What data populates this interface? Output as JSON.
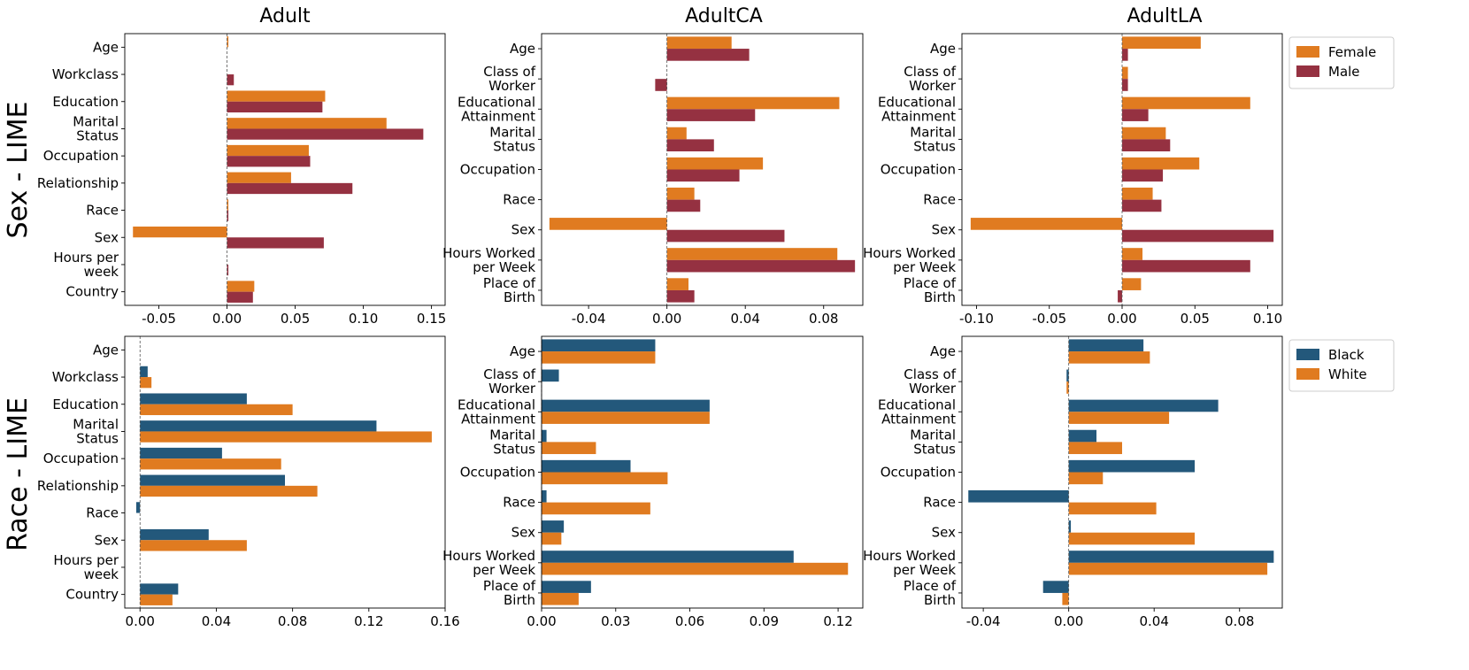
{
  "figure": {
    "row_labels": [
      "Sex - LIME",
      "Race - LIME"
    ],
    "col_titles": [
      "Adult",
      "AdultCA",
      "AdultLA"
    ]
  },
  "legends": [
    {
      "entries": [
        {
          "name": "Female",
          "color": "#E07B20"
        },
        {
          "name": "Male",
          "color": "#953141"
        }
      ]
    },
    {
      "entries": [
        {
          "name": "Black",
          "color": "#23587B"
        },
        {
          "name": "White",
          "color": "#E07B20"
        }
      ]
    }
  ],
  "chart_data": [
    {
      "type": "bar",
      "orientation": "horizontal",
      "row": 0,
      "col": 0,
      "title": "Adult",
      "categories": [
        "Age",
        "Workclass",
        "Education",
        "Marital\nStatus",
        "Occupation",
        "Relationship",
        "Race",
        "Sex",
        "Hours per\nweek",
        "Country"
      ],
      "xlim": [
        -0.075,
        0.16
      ],
      "xticks": [
        -0.05,
        0.0,
        0.05,
        0.1,
        0.15
      ],
      "xtick_labels": [
        "-0.05",
        "0.00",
        "0.05",
        "0.10",
        "0.15"
      ],
      "series": [
        {
          "name": "Female",
          "color": "#E07B20",
          "values": [
            0.001,
            0.0,
            0.072,
            0.117,
            0.06,
            0.047,
            0.001,
            -0.069,
            0.0,
            0.02
          ]
        },
        {
          "name": "Male",
          "color": "#953141",
          "values": [
            0.0,
            0.005,
            0.07,
            0.144,
            0.061,
            0.092,
            0.001,
            0.071,
            0.001,
            0.019
          ]
        }
      ]
    },
    {
      "type": "bar",
      "orientation": "horizontal",
      "row": 0,
      "col": 1,
      "title": "AdultCA",
      "categories": [
        "Age",
        "Class of\nWorker",
        "Educational\nAttainment",
        "Marital\nStatus",
        "Occupation",
        "Race",
        "Sex",
        "Hours Worked\nper Week",
        "Place of\nBirth"
      ],
      "xlim": [
        -0.064,
        0.1
      ],
      "xticks": [
        -0.04,
        0.0,
        0.04,
        0.08
      ],
      "xtick_labels": [
        "-0.04",
        "0.00",
        "0.04",
        "0.08"
      ],
      "series": [
        {
          "name": "Female",
          "color": "#E07B20",
          "values": [
            0.033,
            0.0,
            0.088,
            0.01,
            0.049,
            0.014,
            -0.06,
            0.087,
            0.011
          ]
        },
        {
          "name": "Male",
          "color": "#953141",
          "values": [
            0.042,
            -0.006,
            0.045,
            0.024,
            0.037,
            0.017,
            0.06,
            0.096,
            0.014
          ]
        }
      ]
    },
    {
      "type": "bar",
      "orientation": "horizontal",
      "row": 0,
      "col": 2,
      "title": "AdultLA",
      "categories": [
        "Age",
        "Class of\nWorker",
        "Educational\nAttainment",
        "Marital\nStatus",
        "Occupation",
        "Race",
        "Sex",
        "Hours Worked\nper Week",
        "Place of\nBirth"
      ],
      "xlim": [
        -0.11,
        0.11
      ],
      "xticks": [
        -0.1,
        -0.05,
        0.0,
        0.05,
        0.1
      ],
      "xtick_labels": [
        "-0.10",
        "-0.05",
        "0.00",
        "0.05",
        "0.10"
      ],
      "series": [
        {
          "name": "Female",
          "color": "#E07B20",
          "values": [
            0.054,
            0.004,
            0.088,
            0.03,
            0.053,
            0.021,
            -0.104,
            0.014,
            0.013
          ]
        },
        {
          "name": "Male",
          "color": "#953141",
          "values": [
            0.004,
            0.004,
            0.018,
            0.033,
            0.028,
            0.027,
            0.104,
            0.088,
            -0.003
          ]
        }
      ]
    },
    {
      "type": "bar",
      "orientation": "horizontal",
      "row": 1,
      "col": 0,
      "title": "",
      "categories": [
        "Age",
        "Workclass",
        "Education",
        "Marital\nStatus",
        "Occupation",
        "Relationship",
        "Race",
        "Sex",
        "Hours per\nweek",
        "Country"
      ],
      "xlim": [
        -0.008,
        0.16
      ],
      "xticks": [
        0.0,
        0.04,
        0.08,
        0.12,
        0.16
      ],
      "xtick_labels": [
        "0.00",
        "0.04",
        "0.08",
        "0.12",
        "0.16"
      ],
      "series": [
        {
          "name": "Black",
          "color": "#23587B",
          "values": [
            0.0,
            0.004,
            0.056,
            0.124,
            0.043,
            0.076,
            -0.002,
            0.036,
            0.0,
            0.02
          ]
        },
        {
          "name": "White",
          "color": "#E07B20",
          "values": [
            0.0,
            0.006,
            0.08,
            0.153,
            0.074,
            0.093,
            0.0,
            0.056,
            0.0,
            0.017
          ]
        }
      ]
    },
    {
      "type": "bar",
      "orientation": "horizontal",
      "row": 1,
      "col": 1,
      "title": "",
      "categories": [
        "Age",
        "Class of\nWorker",
        "Educational\nAttainment",
        "Marital\nStatus",
        "Occupation",
        "Race",
        "Sex",
        "Hours Worked\nper Week",
        "Place of\nBirth"
      ],
      "xlim": [
        0.0,
        0.13
      ],
      "xticks": [
        0.0,
        0.03,
        0.06,
        0.09,
        0.12
      ],
      "xtick_labels": [
        "0.00",
        "0.03",
        "0.06",
        "0.09",
        "0.12"
      ],
      "series": [
        {
          "name": "Black",
          "color": "#23587B",
          "values": [
            0.046,
            0.007,
            0.068,
            0.002,
            0.036,
            0.002,
            0.009,
            0.102,
            0.02
          ]
        },
        {
          "name": "White",
          "color": "#E07B20",
          "values": [
            0.046,
            0.0,
            0.068,
            0.022,
            0.051,
            0.044,
            0.008,
            0.124,
            0.015
          ]
        }
      ]
    },
    {
      "type": "bar",
      "orientation": "horizontal",
      "row": 1,
      "col": 2,
      "title": "",
      "categories": [
        "Age",
        "Class of\nWorker",
        "Educational\nAttainment",
        "Marital\nStatus",
        "Occupation",
        "Race",
        "Sex",
        "Hours Worked\nper Week",
        "Place of\nBirth"
      ],
      "xlim": [
        -0.05,
        0.1
      ],
      "xticks": [
        -0.04,
        0.0,
        0.04,
        0.08
      ],
      "xtick_labels": [
        "-0.04",
        "0.00",
        "0.04",
        "0.08"
      ],
      "series": [
        {
          "name": "Black",
          "color": "#23587B",
          "values": [
            0.035,
            -0.001,
            0.07,
            0.013,
            0.059,
            -0.047,
            0.001,
            0.096,
            -0.012
          ]
        },
        {
          "name": "White",
          "color": "#E07B20",
          "values": [
            0.038,
            -0.001,
            0.047,
            0.025,
            0.016,
            0.041,
            0.059,
            0.093,
            -0.003
          ]
        }
      ]
    }
  ]
}
